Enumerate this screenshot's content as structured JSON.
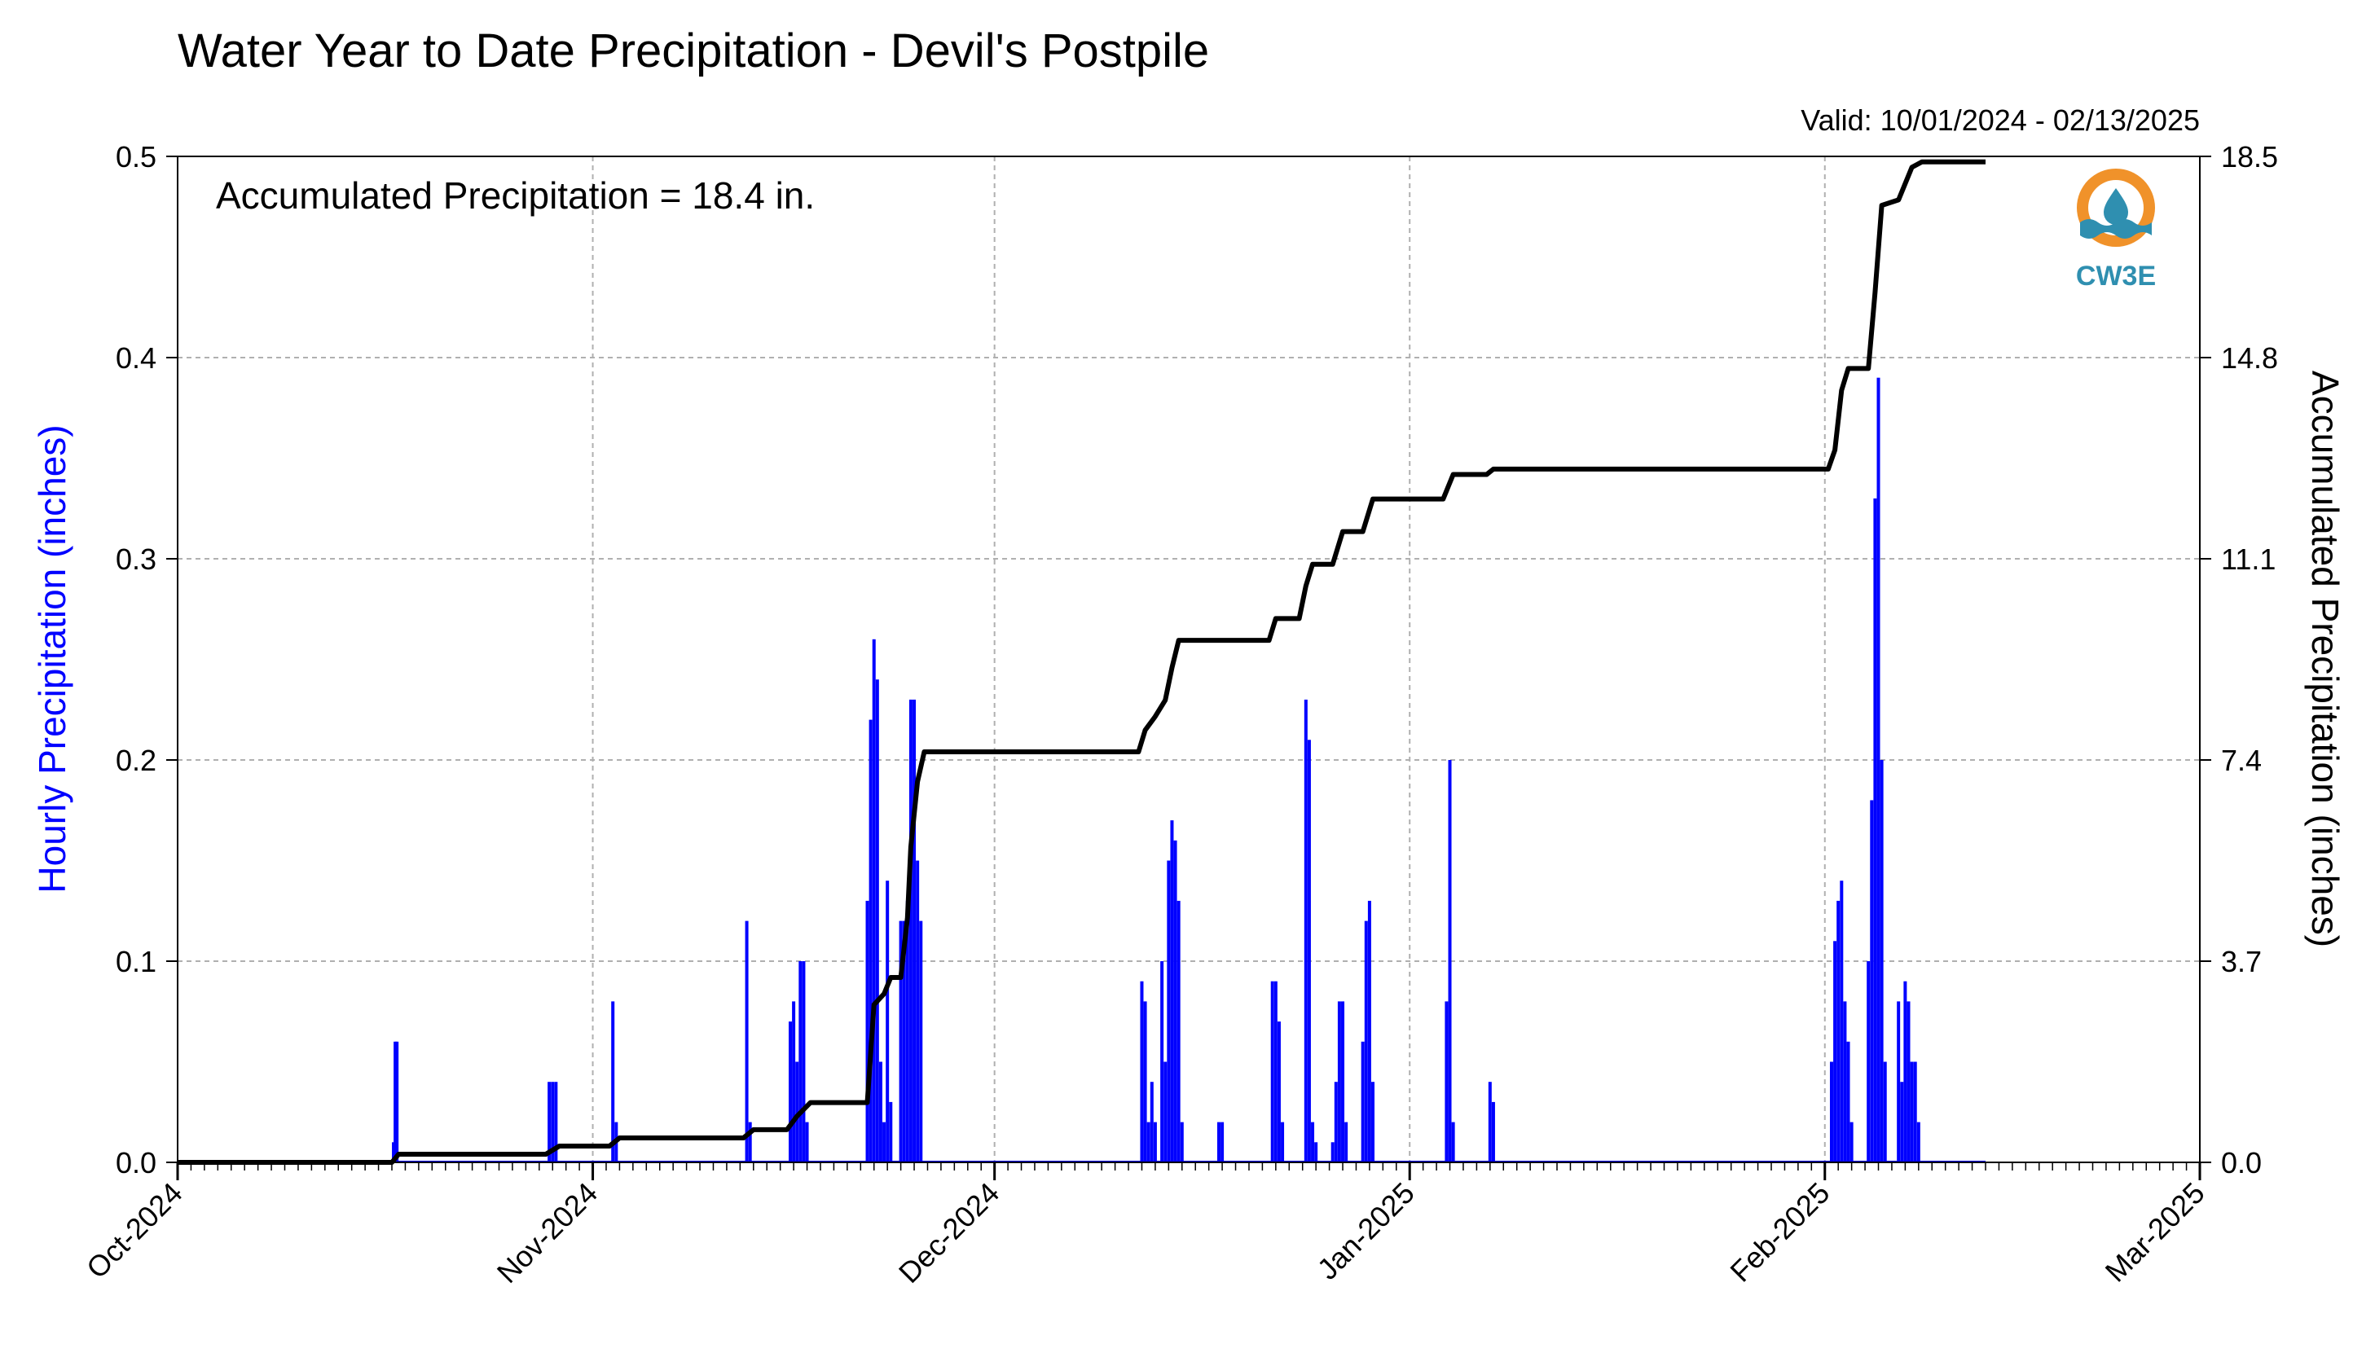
{
  "chart_data": {
    "type": "bar",
    "title": "Water Year to Date Precipitation - Devil's Postpile",
    "subtitle": "Valid: 10/01/2024 - 02/13/2025",
    "annotation": "Accumulated Precipitation = 18.4 in.",
    "ylabel_left": "Hourly Precipitation (inches)",
    "ylabel_right": "Accumulated Precipitation (inches)",
    "xlim": [
      "2024-10-01",
      "2025-03-01"
    ],
    "ylim_left": [
      0,
      0.5
    ],
    "ylim_right": [
      0,
      18.5
    ],
    "x_tick_labels": [
      "Oct-2024",
      "Nov-2024",
      "Dec-2024",
      "Jan-2025",
      "Feb-2025",
      "Mar-2025"
    ],
    "x_tick_dates": [
      "2024-10-01",
      "2024-11-01",
      "2024-12-01",
      "2025-01-01",
      "2025-02-01",
      "2025-03-01"
    ],
    "y_tick_labels_left": [
      "0.0",
      "0.1",
      "0.2",
      "0.3",
      "0.4",
      "0.5"
    ],
    "y_tick_values_left": [
      0.0,
      0.1,
      0.2,
      0.3,
      0.4,
      0.5
    ],
    "y_tick_labels_right": [
      "0.0",
      "3.7",
      "7.4",
      "11.1",
      "14.8",
      "18.5"
    ],
    "y_tick_values_right": [
      0.0,
      3.7,
      7.4,
      11.1,
      14.8,
      18.5
    ],
    "grid": true,
    "logo_text": "CW3E",
    "colors": {
      "hourly": "#0000ff",
      "accumulated": "#000000",
      "grid": "#b0b0b0",
      "logo_blue": "#2f8fb0",
      "logo_orange": "#f0922a"
    },
    "series": [
      {
        "type": "bar",
        "axis": "left",
        "points": [
          [
            "2024-10-17T03:00",
            0.01
          ],
          [
            "2024-10-17T06:00",
            0.06
          ],
          [
            "2024-10-17T09:00",
            0.06
          ],
          [
            "2024-10-28T18:00",
            0.04
          ],
          [
            "2024-10-29T00:00",
            0.04
          ],
          [
            "2024-10-29T06:00",
            0.04
          ],
          [
            "2024-11-02T12:00",
            0.08
          ],
          [
            "2024-11-02T18:00",
            0.02
          ],
          [
            "2024-11-12T12:00",
            0.12
          ],
          [
            "2024-11-12T18:00",
            0.02
          ],
          [
            "2024-11-15T18:00",
            0.07
          ],
          [
            "2024-11-16T00:00",
            0.08
          ],
          [
            "2024-11-16T06:00",
            0.05
          ],
          [
            "2024-11-16T12:00",
            0.1
          ],
          [
            "2024-11-16T18:00",
            0.1
          ],
          [
            "2024-11-17T00:00",
            0.02
          ],
          [
            "2024-11-21T12:00",
            0.13
          ],
          [
            "2024-11-21T18:00",
            0.22
          ],
          [
            "2024-11-22T00:00",
            0.26
          ],
          [
            "2024-11-22T06:00",
            0.24
          ],
          [
            "2024-11-22T12:00",
            0.05
          ],
          [
            "2024-11-22T18:00",
            0.02
          ],
          [
            "2024-11-23T00:00",
            0.14
          ],
          [
            "2024-11-23T06:00",
            0.03
          ],
          [
            "2024-11-24T00:00",
            0.12
          ],
          [
            "2024-11-24T06:00",
            0.12
          ],
          [
            "2024-11-24T12:00",
            0.13
          ],
          [
            "2024-11-24T18:00",
            0.23
          ],
          [
            "2024-11-25T00:00",
            0.23
          ],
          [
            "2024-11-25T06:00",
            0.15
          ],
          [
            "2024-11-25T12:00",
            0.12
          ],
          [
            "2024-12-12T00:00",
            0.09
          ],
          [
            "2024-12-12T06:00",
            0.08
          ],
          [
            "2024-12-12T12:00",
            0.02
          ],
          [
            "2024-12-12T18:00",
            0.04
          ],
          [
            "2024-12-13T00:00",
            0.02
          ],
          [
            "2024-12-13T12:00",
            0.1
          ],
          [
            "2024-12-13T18:00",
            0.05
          ],
          [
            "2024-12-14T00:00",
            0.15
          ],
          [
            "2024-12-14T06:00",
            0.17
          ],
          [
            "2024-12-14T12:00",
            0.16
          ],
          [
            "2024-12-14T18:00",
            0.13
          ],
          [
            "2024-12-15T00:00",
            0.02
          ],
          [
            "2024-12-17T18:00",
            0.02
          ],
          [
            "2024-12-18T00:00",
            0.02
          ],
          [
            "2024-12-21T18:00",
            0.09
          ],
          [
            "2024-12-22T00:00",
            0.09
          ],
          [
            "2024-12-22T06:00",
            0.07
          ],
          [
            "2024-12-22T12:00",
            0.02
          ],
          [
            "2024-12-24T06:00",
            0.23
          ],
          [
            "2024-12-24T12:00",
            0.21
          ],
          [
            "2024-12-24T18:00",
            0.02
          ],
          [
            "2024-12-25T00:00",
            0.01
          ],
          [
            "2024-12-26T06:00",
            0.01
          ],
          [
            "2024-12-26T12:00",
            0.04
          ],
          [
            "2024-12-26T18:00",
            0.08
          ],
          [
            "2024-12-27T00:00",
            0.08
          ],
          [
            "2024-12-27T06:00",
            0.02
          ],
          [
            "2024-12-28T12:00",
            0.06
          ],
          [
            "2024-12-28T18:00",
            0.12
          ],
          [
            "2024-12-29T00:00",
            0.13
          ],
          [
            "2024-12-29T06:00",
            0.04
          ],
          [
            "2025-01-03T18:00",
            0.08
          ],
          [
            "2025-01-04T00:00",
            0.2
          ],
          [
            "2025-01-04T06:00",
            0.02
          ],
          [
            "2025-01-07T00:00",
            0.04
          ],
          [
            "2025-01-07T06:00",
            0.03
          ],
          [
            "2025-02-01T12:00",
            0.05
          ],
          [
            "2025-02-01T18:00",
            0.11
          ],
          [
            "2025-02-02T00:00",
            0.13
          ],
          [
            "2025-02-02T06:00",
            0.14
          ],
          [
            "2025-02-02T12:00",
            0.08
          ],
          [
            "2025-02-02T18:00",
            0.06
          ],
          [
            "2025-02-03T00:00",
            0.02
          ],
          [
            "2025-02-04T06:00",
            0.1
          ],
          [
            "2025-02-04T12:00",
            0.18
          ],
          [
            "2025-02-04T18:00",
            0.33
          ],
          [
            "2025-02-05T00:00",
            0.39
          ],
          [
            "2025-02-05T06:00",
            0.2
          ],
          [
            "2025-02-05T12:00",
            0.05
          ],
          [
            "2025-02-06T12:00",
            0.08
          ],
          [
            "2025-02-06T18:00",
            0.04
          ],
          [
            "2025-02-07T00:00",
            0.09
          ],
          [
            "2025-02-07T06:00",
            0.08
          ],
          [
            "2025-02-07T12:00",
            0.05
          ],
          [
            "2025-02-07T18:00",
            0.05
          ],
          [
            "2025-02-08T00:00",
            0.02
          ]
        ]
      },
      {
        "type": "line",
        "axis": "right",
        "points": [
          [
            "2024-10-01T00:00",
            0.0
          ],
          [
            "2024-10-17T00:00",
            0.0
          ],
          [
            "2024-10-17T12:00",
            0.15
          ],
          [
            "2024-10-28T12:00",
            0.15
          ],
          [
            "2024-10-29T12:00",
            0.3
          ],
          [
            "2024-11-02T06:00",
            0.3
          ],
          [
            "2024-11-03T00:00",
            0.45
          ],
          [
            "2024-11-12T06:00",
            0.45
          ],
          [
            "2024-11-13T00:00",
            0.6
          ],
          [
            "2024-11-15T12:00",
            0.6
          ],
          [
            "2024-11-16T06:00",
            0.85
          ],
          [
            "2024-11-17T06:00",
            1.1
          ],
          [
            "2024-11-21T12:00",
            1.1
          ],
          [
            "2024-11-22T00:00",
            2.9
          ],
          [
            "2024-11-22T18:00",
            3.1
          ],
          [
            "2024-11-23T06:00",
            3.4
          ],
          [
            "2024-11-24T00:00",
            3.4
          ],
          [
            "2024-11-24T12:00",
            4.5
          ],
          [
            "2024-11-24T18:00",
            5.8
          ],
          [
            "2024-11-25T06:00",
            7.0
          ],
          [
            "2024-11-25T18:00",
            7.55
          ],
          [
            "2024-12-11T18:00",
            7.55
          ],
          [
            "2024-12-12T06:00",
            7.95
          ],
          [
            "2024-12-13T00:00",
            8.2
          ],
          [
            "2024-12-13T18:00",
            8.5
          ],
          [
            "2024-12-14T06:00",
            9.1
          ],
          [
            "2024-12-14T18:00",
            9.6
          ],
          [
            "2024-12-21T12:00",
            9.6
          ],
          [
            "2024-12-22T00:00",
            10.0
          ],
          [
            "2024-12-23T18:00",
            10.0
          ],
          [
            "2024-12-24T06:00",
            10.6
          ],
          [
            "2024-12-24T18:00",
            11.0
          ],
          [
            "2024-12-26T06:00",
            11.0
          ],
          [
            "2024-12-27T00:00",
            11.6
          ],
          [
            "2024-12-28T12:00",
            11.6
          ],
          [
            "2024-12-29T06:00",
            12.2
          ],
          [
            "2025-01-03T12:00",
            12.2
          ],
          [
            "2025-01-04T06:00",
            12.65
          ],
          [
            "2025-01-06T18:00",
            12.65
          ],
          [
            "2025-01-07T06:00",
            12.75
          ],
          [
            "2025-02-01T06:00",
            12.75
          ],
          [
            "2025-02-01T18:00",
            13.1
          ],
          [
            "2025-02-02T06:00",
            14.2
          ],
          [
            "2025-02-02T18:00",
            14.6
          ],
          [
            "2025-02-04T06:00",
            14.6
          ],
          [
            "2025-02-04T18:00",
            16.0
          ],
          [
            "2025-02-05T06:00",
            17.6
          ],
          [
            "2025-02-06T12:00",
            17.7
          ],
          [
            "2025-02-07T00:00",
            18.0
          ],
          [
            "2025-02-07T12:00",
            18.3
          ],
          [
            "2025-02-08T06:00",
            18.4
          ],
          [
            "2025-02-13T00:00",
            18.4
          ]
        ]
      }
    ]
  }
}
